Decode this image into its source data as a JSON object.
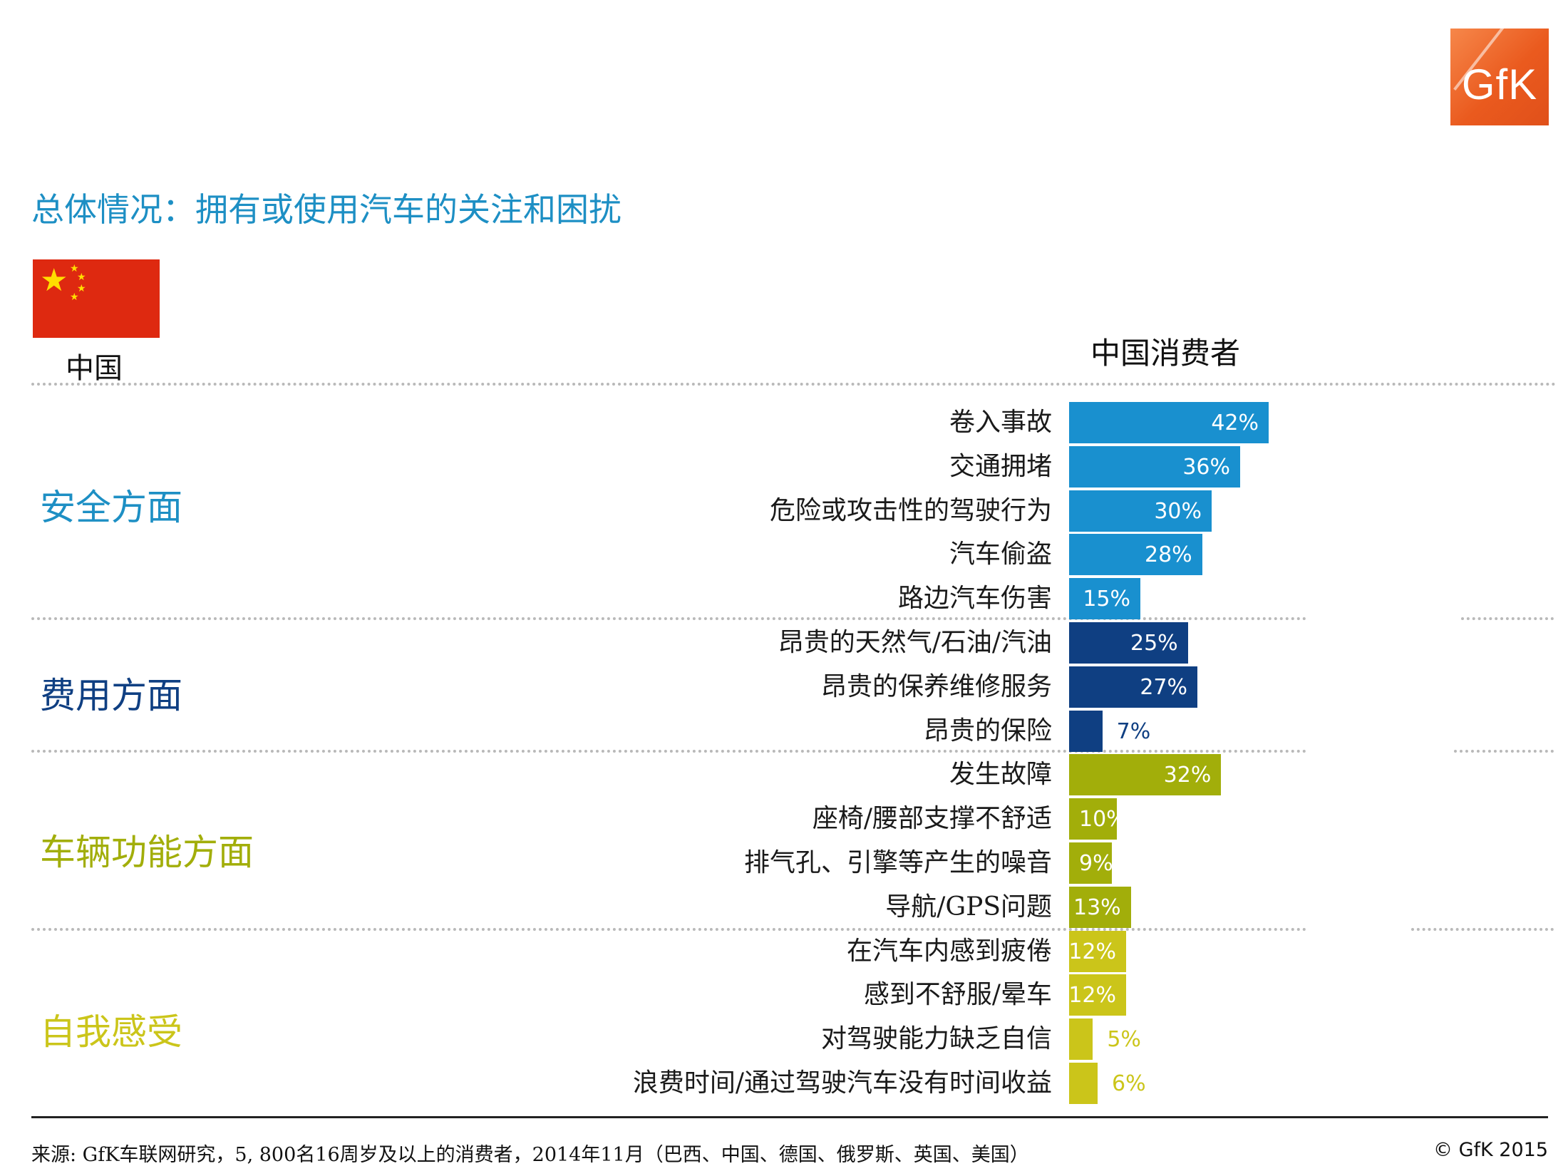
{
  "logo": {
    "text": "GfK"
  },
  "title": "总体情况：拥有或使用汽车的关注和困扰",
  "country": "中国",
  "chart_data": {
    "type": "bar",
    "orientation": "horizontal",
    "title": "中国消费者",
    "value_suffix": "%",
    "xlim": [
      0,
      100
    ],
    "groups": [
      {
        "name": "安全方面",
        "color": "#1990cf",
        "label_color": "#1d8fc4",
        "value_color": "#ffffff",
        "categories": [
          "卷入事故",
          "交通拥堵",
          "危险或攻击性的驾驶行为",
          "汽车偷盗",
          "路边汽车伤害"
        ],
        "values": [
          42,
          36,
          30,
          28,
          15
        ]
      },
      {
        "name": "费用方面",
        "color": "#0f3f82",
        "label_color": "#0f3f82",
        "value_color": "#ffffff",
        "categories": [
          "昂贵的天然气/石油/汽油",
          "昂贵的保养维修服务",
          "昂贵的保险"
        ],
        "values": [
          25,
          27,
          7
        ]
      },
      {
        "name": "车辆功能方面",
        "color": "#a2ae0a",
        "label_color": "#a2ae0a",
        "value_color": "#ffffff",
        "categories": [
          "发生故障",
          "座椅/腰部支撑不舒适",
          "排气孔、引擎等产生的噪音",
          "导航/GPS问题"
        ],
        "values": [
          32,
          10,
          9,
          13
        ]
      },
      {
        "name": "自我感受",
        "color": "#cbc51a",
        "label_color": "#cbc51a",
        "value_color": "#ffffff",
        "categories": [
          "在汽车内感到疲倦",
          "感到不舒服/晕车",
          "对驾驶能力缺乏自信",
          "浪费时间/通过驾驶汽车没有时间收益"
        ],
        "values": [
          12,
          12,
          5,
          6
        ]
      }
    ]
  },
  "footer": {
    "source": "来源: GfK车联网研究，5, 800名16周岁及以上的消费者，2014年11月（巴西、中国、德国、俄罗斯、英国、美国）",
    "copyright": "© GfK 2015"
  }
}
